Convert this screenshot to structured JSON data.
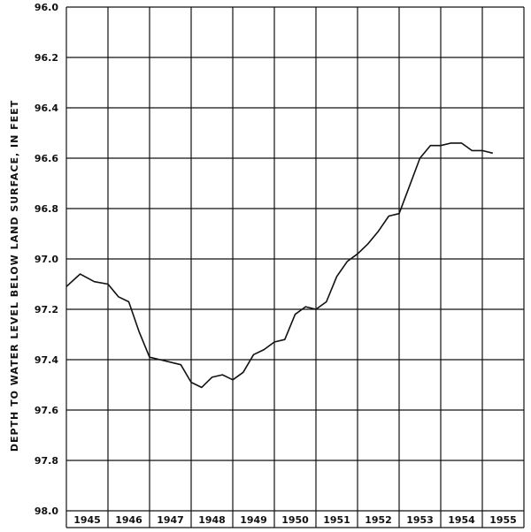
{
  "chart_data": {
    "type": "line",
    "title": "",
    "xlabel": "",
    "ylabel": "DEPTH TO WATER LEVEL BELOW LAND SURFACE, IN FEET",
    "ylim": [
      96.0,
      98.0
    ],
    "y_inverted": true,
    "xlim": [
      1945.0,
      1956.0
    ],
    "grid": true,
    "categories": [
      "1945",
      "1946",
      "1947",
      "1948",
      "1949",
      "1950",
      "1951",
      "1952",
      "1953",
      "1954",
      "1955"
    ],
    "y_ticks": [
      "96.0",
      "96.2",
      "96.4",
      "96.6",
      "96.8",
      "97.0",
      "97.2",
      "97.4",
      "97.6",
      "97.8",
      "98.0"
    ],
    "series": [
      {
        "x": [
          1945.0,
          1945.33,
          1945.67,
          1946.0,
          1946.25,
          1946.5,
          1946.75,
          1947.0,
          1947.25,
          1947.5,
          1947.75,
          1948.0,
          1948.25,
          1948.5,
          1948.75,
          1949.0,
          1949.25,
          1949.5,
          1949.75,
          1950.0,
          1950.25,
          1950.5,
          1950.75,
          1951.0,
          1951.25,
          1951.5,
          1951.75,
          1952.0,
          1952.25,
          1952.5,
          1952.75,
          1953.0,
          1953.25,
          1953.5,
          1953.75,
          1954.0,
          1954.25,
          1954.5,
          1954.75,
          1955.0,
          1955.25
        ],
        "values": [
          97.11,
          97.06,
          97.09,
          97.1,
          97.15,
          97.17,
          97.29,
          97.39,
          97.4,
          97.41,
          97.42,
          97.49,
          97.51,
          97.47,
          97.46,
          97.48,
          97.45,
          97.38,
          97.36,
          97.33,
          97.32,
          97.22,
          97.19,
          97.2,
          97.17,
          97.07,
          97.01,
          96.98,
          96.94,
          96.89,
          96.83,
          96.82,
          96.71,
          96.6,
          96.55,
          96.55,
          96.54,
          96.54,
          96.57,
          96.57,
          96.58
        ]
      }
    ]
  }
}
